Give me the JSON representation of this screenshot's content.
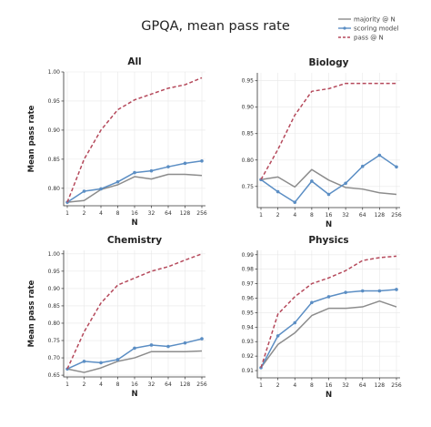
{
  "figure": {
    "title": "GPQA, mean pass rate"
  },
  "legend": {
    "placement": "top-right",
    "entries": [
      {
        "name": "majority @ N",
        "color": "#8c8c8c",
        "style": "solid"
      },
      {
        "name": "scoring model",
        "color": "#5b8ec4",
        "style": "solid-marker"
      },
      {
        "name": "pass @ N",
        "color": "#b5495b",
        "style": "dashed"
      }
    ]
  },
  "colors": {
    "majority": "#8c8c8c",
    "scoring": "#5b8ec4",
    "pass": "#b5495b"
  },
  "chart_data": [
    {
      "type": "line",
      "title": "All",
      "xlabel": "N",
      "ylabel": "Mean pass rate",
      "x": [
        "1",
        "2",
        "4",
        "8",
        "16",
        "32",
        "64",
        "128",
        "256"
      ],
      "ylim": [
        0.77,
        1.0
      ],
      "yticks": [
        "0.80",
        "0.85",
        "0.90",
        "0.95",
        "1.00"
      ],
      "ytick_values": [
        0.8,
        0.85,
        0.9,
        0.95,
        1.0
      ],
      "grid": true,
      "series": [
        {
          "name": "majority @ N",
          "values": [
            0.776,
            0.779,
            0.798,
            0.806,
            0.82,
            0.816,
            0.824,
            0.824,
            0.822
          ]
        },
        {
          "name": "scoring model",
          "values": [
            0.776,
            0.795,
            0.799,
            0.811,
            0.827,
            0.83,
            0.837,
            0.843,
            0.847
          ]
        },
        {
          "name": "pass @ N",
          "values": [
            0.776,
            0.85,
            0.9,
            0.935,
            0.952,
            0.962,
            0.972,
            0.978,
            0.99
          ]
        }
      ]
    },
    {
      "type": "line",
      "title": "Biology",
      "xlabel": "N",
      "ylabel": "",
      "x": [
        "1",
        "2",
        "4",
        "8",
        "16",
        "32",
        "64",
        "128",
        "256"
      ],
      "ylim": [
        0.71,
        0.965
      ],
      "yticks": [
        "0.75",
        "0.80",
        "0.85",
        "0.90",
        "0.95"
      ],
      "ytick_values": [
        0.75,
        0.8,
        0.85,
        0.9,
        0.95
      ],
      "grid": true,
      "series": [
        {
          "name": "majority @ N",
          "values": [
            0.763,
            0.768,
            0.749,
            0.782,
            0.762,
            0.748,
            0.745,
            0.738,
            0.735
          ]
        },
        {
          "name": "scoring model",
          "values": [
            0.763,
            0.74,
            0.72,
            0.76,
            0.735,
            0.756,
            0.788,
            0.809,
            0.787
          ]
        },
        {
          "name": "pass @ N",
          "values": [
            0.763,
            0.82,
            0.885,
            0.93,
            0.935,
            0.945,
            0.945,
            0.945,
            0.945
          ]
        }
      ]
    },
    {
      "type": "line",
      "title": "Chemistry",
      "xlabel": "N",
      "ylabel": "Mean pass rate",
      "x": [
        "1",
        "2",
        "4",
        "8",
        "16",
        "32",
        "64",
        "128",
        "256"
      ],
      "ylim": [
        0.645,
        1.01
      ],
      "yticks": [
        "0.65",
        "0.70",
        "0.75",
        "0.80",
        "0.85",
        "0.90",
        "0.95",
        "1.00"
      ],
      "ytick_values": [
        0.65,
        0.7,
        0.75,
        0.8,
        0.85,
        0.9,
        0.95,
        1.0
      ],
      "grid": true,
      "series": [
        {
          "name": "majority @ N",
          "values": [
            0.668,
            0.658,
            0.671,
            0.69,
            0.7,
            0.718,
            0.718,
            0.718,
            0.72
          ]
        },
        {
          "name": "scoring model",
          "values": [
            0.668,
            0.69,
            0.686,
            0.695,
            0.728,
            0.737,
            0.733,
            0.743,
            0.755
          ]
        },
        {
          "name": "pass @ N",
          "values": [
            0.668,
            0.775,
            0.858,
            0.91,
            0.93,
            0.95,
            0.963,
            0.982,
            1.0
          ]
        }
      ]
    },
    {
      "type": "line",
      "title": "Physics",
      "xlabel": "N",
      "ylabel": "",
      "x": [
        "1",
        "2",
        "4",
        "8",
        "16",
        "32",
        "64",
        "128",
        "256"
      ],
      "ylim": [
        0.905,
        0.993
      ],
      "yticks": [
        "0.91",
        "0.92",
        "0.93",
        "0.94",
        "0.95",
        "0.96",
        "0.97",
        "0.98",
        "0.99"
      ],
      "ytick_values": [
        0.91,
        0.92,
        0.93,
        0.94,
        0.95,
        0.96,
        0.97,
        0.98,
        0.99
      ],
      "grid": true,
      "series": [
        {
          "name": "majority @ N",
          "values": [
            0.912,
            0.928,
            0.936,
            0.948,
            0.953,
            0.953,
            0.954,
            0.958,
            0.954
          ]
        },
        {
          "name": "scoring model",
          "values": [
            0.912,
            0.934,
            0.943,
            0.957,
            0.961,
            0.964,
            0.965,
            0.965,
            0.966
          ]
        },
        {
          "name": "pass @ N",
          "values": [
            0.912,
            0.949,
            0.961,
            0.97,
            0.974,
            0.979,
            0.986,
            0.988,
            0.989
          ]
        }
      ]
    }
  ]
}
